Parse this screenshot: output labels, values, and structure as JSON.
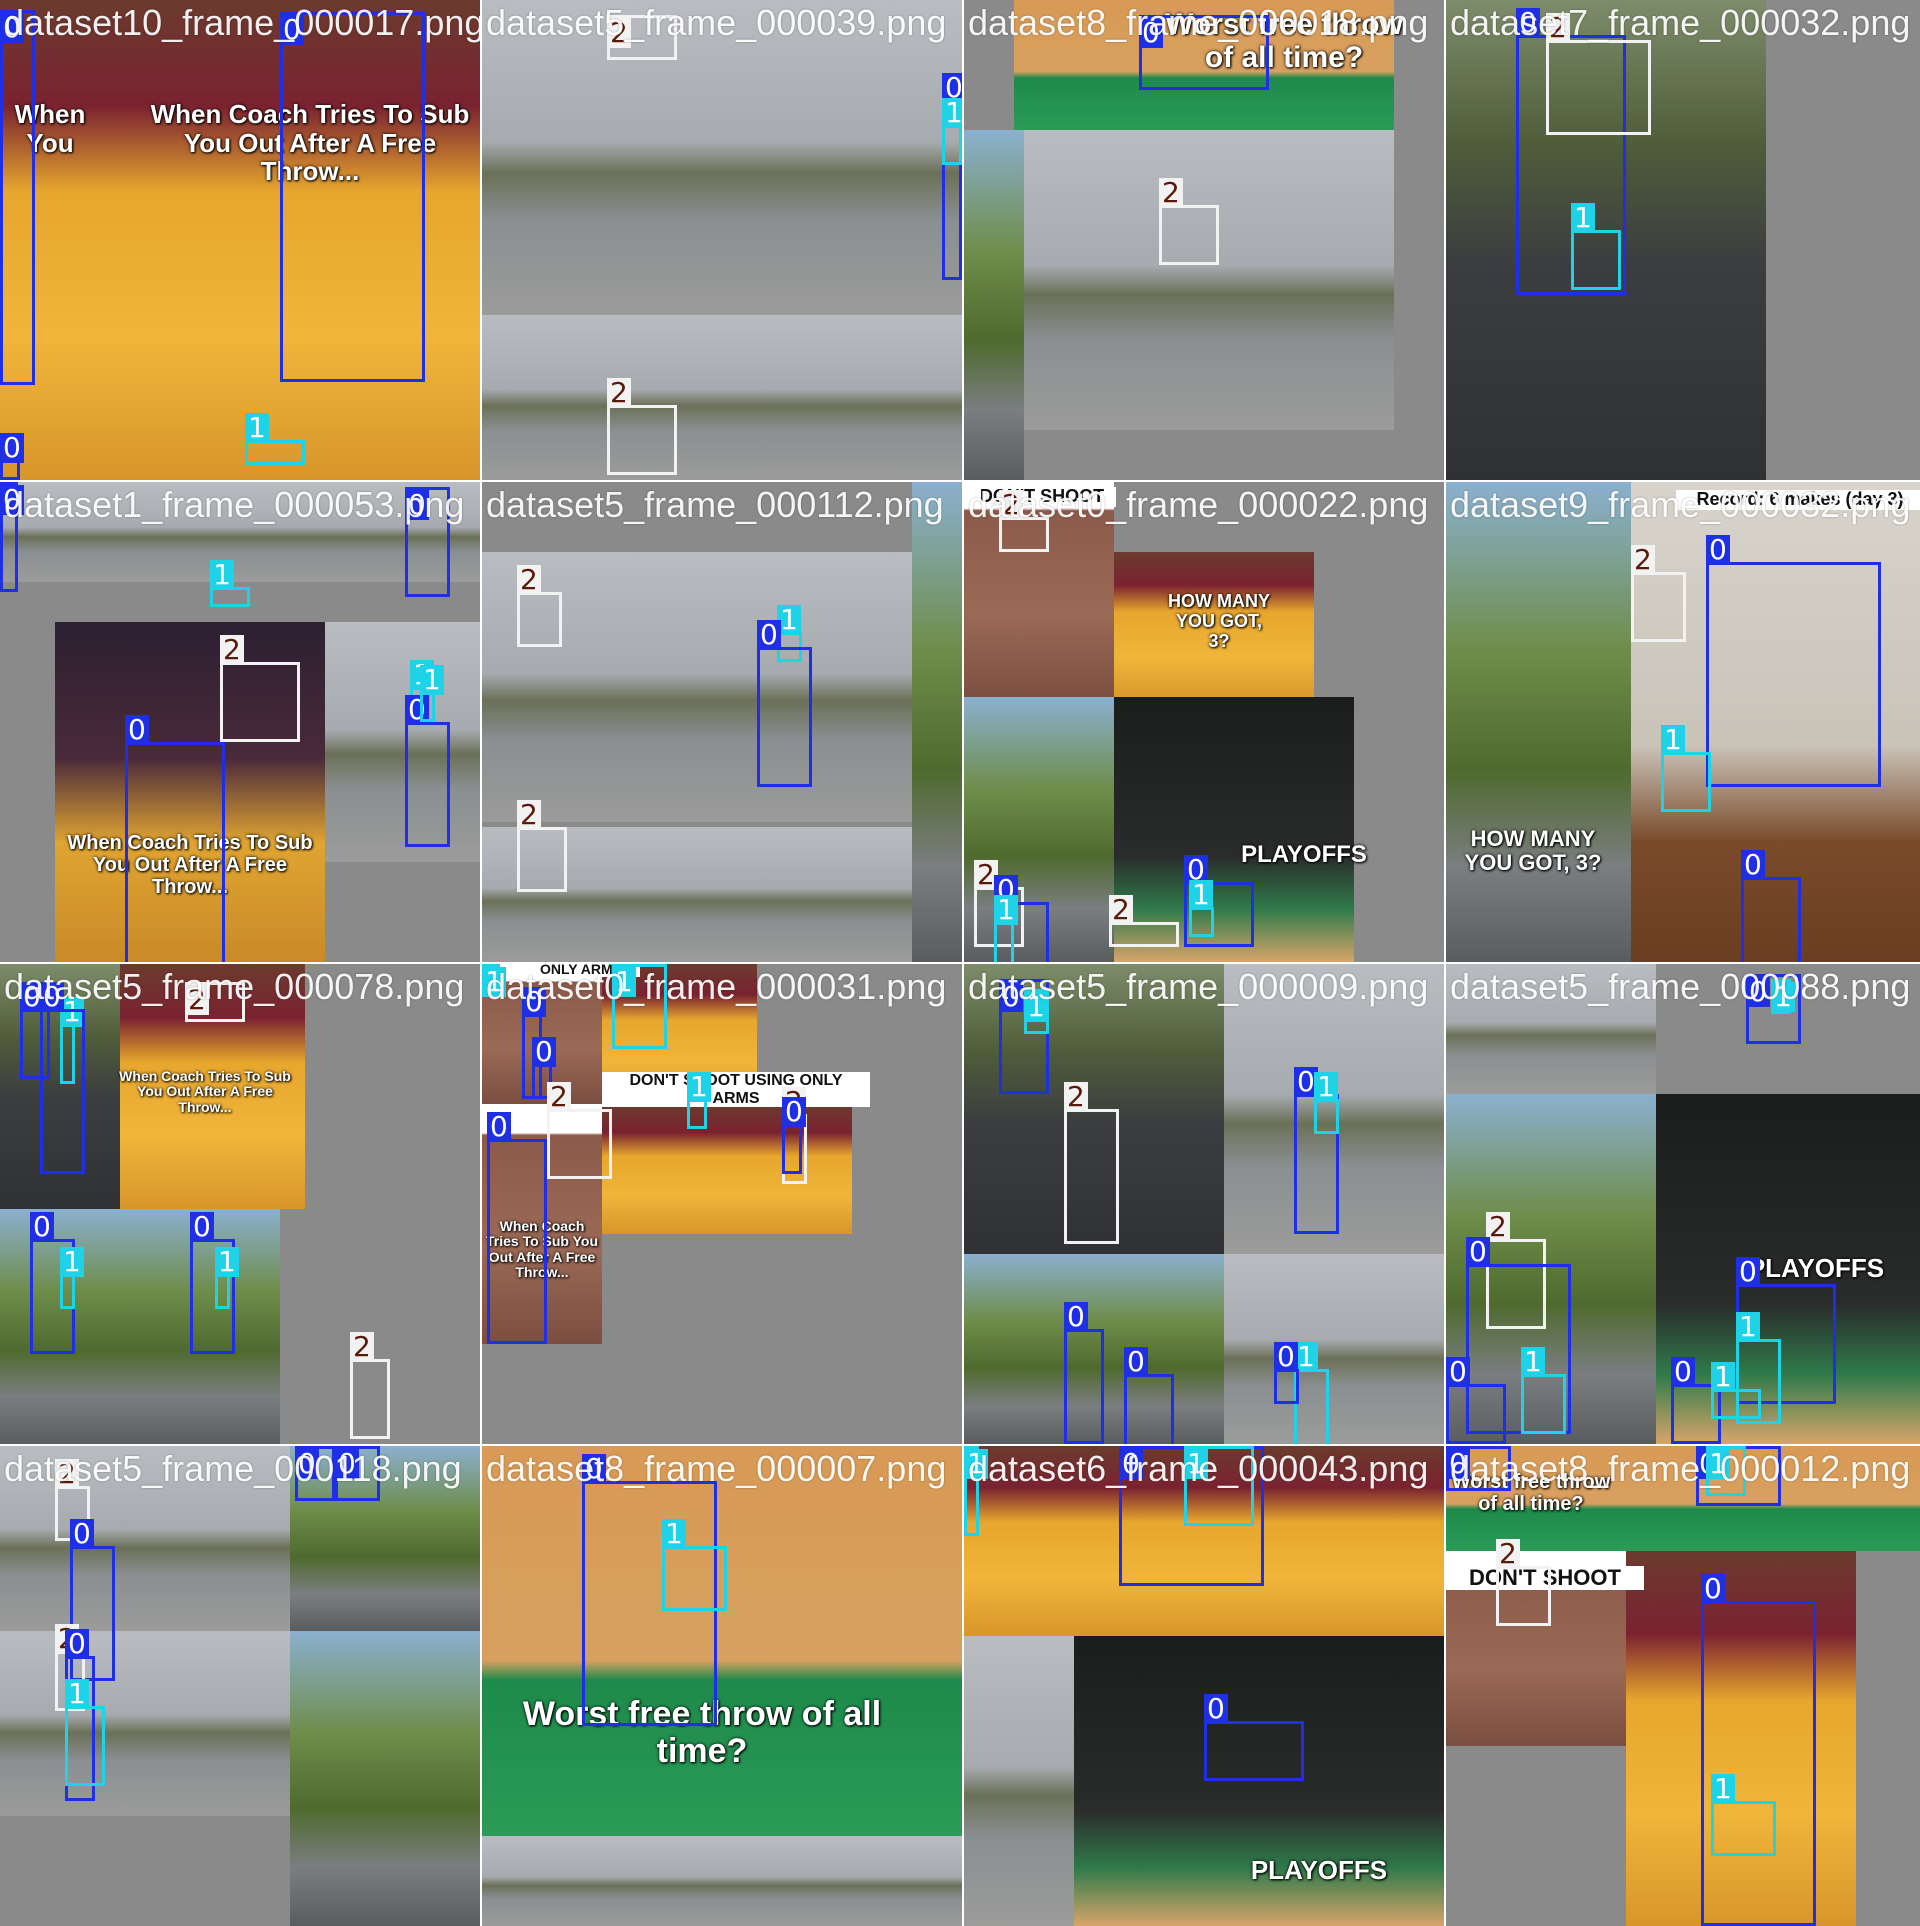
{
  "colors": {
    "background": "#ffffff",
    "fill_gray": "#8a8a8a",
    "class_0": "#1f2fe6",
    "class_1": "#1ed3e8",
    "class_2": "#f2f2f2"
  },
  "tiles": [
    {
      "name": "dataset10_frame_000017.png",
      "scenes": [
        {
          "kind": "court"
        },
        {
          "kind": "court"
        }
      ],
      "texts": [
        "When Coach Tries To Sub You Out After A Free Throw...",
        "When You"
      ],
      "boxes": [
        {
          "label": "0",
          "cls": 0
        },
        {
          "label": "2",
          "cls": 2
        },
        {
          "label": "0",
          "cls": 0
        },
        {
          "label": "1",
          "cls": 1
        },
        {
          "label": "0",
          "cls": 0
        }
      ]
    },
    {
      "name": "dataset5_frame_000039.png",
      "scenes": [
        {
          "kind": "building"
        },
        {
          "kind": "building"
        }
      ],
      "texts": [],
      "boxes": [
        {
          "label": "2",
          "cls": 2
        },
        {
          "label": "0",
          "cls": 0
        },
        {
          "label": "1",
          "cls": 1
        },
        {
          "label": "2",
          "cls": 2
        }
      ]
    },
    {
      "name": "dataset8_frame_000018.png",
      "scenes": [
        {
          "kind": "green"
        },
        {
          "kind": "building"
        },
        {
          "kind": "trees"
        }
      ],
      "texts": [
        "Worst free throw of all time?"
      ],
      "boxes": [
        {
          "label": "0",
          "cls": 0
        },
        {
          "label": "2",
          "cls": 2
        }
      ]
    },
    {
      "name": "dataset7_frame_000032.png",
      "scenes": [
        {
          "kind": "driveway"
        }
      ],
      "texts": [],
      "boxes": [
        {
          "label": "0",
          "cls": 0
        },
        {
          "label": "2",
          "cls": 2
        },
        {
          "label": "1",
          "cls": 1
        }
      ]
    },
    {
      "name": "dataset1_frame_000053.png",
      "scenes": [
        {
          "kind": "building"
        },
        {
          "kind": "arena"
        },
        {
          "kind": "building"
        }
      ],
      "texts": [
        "When Coach Tries To Sub You Out After A Free Throw..."
      ],
      "boxes": [
        {
          "label": "0",
          "cls": 0
        },
        {
          "label": "0",
          "cls": 0
        },
        {
          "label": "1",
          "cls": 1
        },
        {
          "label": "1",
          "cls": 1
        },
        {
          "label": "2",
          "cls": 2
        },
        {
          "label": "0",
          "cls": 0
        },
        {
          "label": "0",
          "cls": 0
        },
        {
          "label": "1",
          "cls": 1
        }
      ]
    },
    {
      "name": "dataset5_frame_000112.png",
      "scenes": [
        {
          "kind": "building"
        },
        {
          "kind": "building"
        },
        {
          "kind": "trees"
        }
      ],
      "texts": [],
      "boxes": [
        {
          "label": "2",
          "cls": 2
        },
        {
          "label": "1",
          "cls": 1
        },
        {
          "label": "0",
          "cls": 0
        },
        {
          "label": "2",
          "cls": 2
        }
      ]
    },
    {
      "name": "dataset0_frame_000022.png",
      "scenes": [
        {
          "kind": "brick"
        },
        {
          "kind": "court"
        },
        {
          "kind": "trees"
        },
        {
          "kind": "crowd"
        }
      ],
      "texts": [
        "DON'T SHOOT",
        "HOW MANY YOU GOT, 3?",
        "PLAYOFFS"
      ],
      "boxes": [
        {
          "label": "2",
          "cls": 2
        },
        {
          "label": "2",
          "cls": 2
        },
        {
          "label": "0",
          "cls": 0
        },
        {
          "label": "1",
          "cls": 1
        },
        {
          "label": "0",
          "cls": 0
        },
        {
          "label": "1",
          "cls": 1
        },
        {
          "label": "2",
          "cls": 2
        }
      ]
    },
    {
      "name": "dataset9_frame_000032.png",
      "scenes": [
        {
          "kind": "trees"
        },
        {
          "kind": "room"
        }
      ],
      "texts": [
        "Record: 6 makes (day 3)",
        "HOW MANY YOU GOT, 3?"
      ],
      "boxes": [
        {
          "label": "2",
          "cls": 2
        },
        {
          "label": "0",
          "cls": 0
        },
        {
          "label": "1",
          "cls": 1
        },
        {
          "label": "0",
          "cls": 0
        }
      ]
    },
    {
      "name": "dataset5_frame_000078.png",
      "scenes": [
        {
          "kind": "driveway"
        },
        {
          "kind": "court"
        },
        {
          "kind": "trees"
        },
        {
          "kind": "trees"
        }
      ],
      "texts": [
        "When Coach Tries To Sub You Out After A Free Throw..."
      ],
      "boxes": [
        {
          "label": "0",
          "cls": 0
        },
        {
          "label": "1",
          "cls": 1
        },
        {
          "label": "0",
          "cls": 0
        },
        {
          "label": "2",
          "cls": 2
        },
        {
          "label": "0",
          "cls": 0
        },
        {
          "label": "1",
          "cls": 1
        },
        {
          "label": "0",
          "cls": 0
        },
        {
          "label": "1",
          "cls": 1
        },
        {
          "label": "2",
          "cls": 2
        },
        {
          "label": "0",
          "cls": 0
        }
      ]
    },
    {
      "name": "dataset0_frame_000031.png",
      "scenes": [
        {
          "kind": "brick"
        },
        {
          "kind": "court"
        },
        {
          "kind": "court"
        },
        {
          "kind": "brick"
        }
      ],
      "texts": [
        "ONLY ARMS",
        "DON'T SHOOT USING ONLY ARMS",
        "When Coach Tries To Sub You Out After A Free Throw..."
      ],
      "boxes": [
        {
          "label": "1",
          "cls": 1
        },
        {
          "label": "0",
          "cls": 0
        },
        {
          "label": "0",
          "cls": 0
        },
        {
          "label": "1",
          "cls": 1
        },
        {
          "label": "2",
          "cls": 2
        },
        {
          "label": "1",
          "cls": 1
        },
        {
          "label": "0",
          "cls": 0
        },
        {
          "label": "2",
          "cls": 2
        },
        {
          "label": "0",
          "cls": 0
        }
      ]
    },
    {
      "name": "dataset5_frame_000009.png",
      "scenes": [
        {
          "kind": "driveway"
        },
        {
          "kind": "building"
        },
        {
          "kind": "trees"
        },
        {
          "kind": "building"
        }
      ],
      "texts": [],
      "boxes": [
        {
          "label": "0",
          "cls": 0
        },
        {
          "label": "1",
          "cls": 1
        },
        {
          "label": "0",
          "cls": 0
        },
        {
          "label": "1",
          "cls": 1
        },
        {
          "label": "2",
          "cls": 2
        },
        {
          "label": "0",
          "cls": 0
        },
        {
          "label": "0",
          "cls": 0
        },
        {
          "label": "1",
          "cls": 1
        },
        {
          "label": "0",
          "cls": 0
        },
        {
          "label": "1",
          "cls": 1
        }
      ]
    },
    {
      "name": "dataset5_frame_000088.png",
      "scenes": [
        {
          "kind": "building"
        },
        {
          "kind": "trees"
        },
        {
          "kind": "crowd"
        }
      ],
      "texts": [
        "PLAYOFFS"
      ],
      "boxes": [
        {
          "label": "0",
          "cls": 0
        },
        {
          "label": "1",
          "cls": 1
        },
        {
          "label": "2",
          "cls": 2
        },
        {
          "label": "0",
          "cls": 0
        },
        {
          "label": "1",
          "cls": 1
        },
        {
          "label": "0",
          "cls": 0
        },
        {
          "label": "1",
          "cls": 1
        },
        {
          "label": "0",
          "cls": 0
        },
        {
          "label": "0",
          "cls": 0
        },
        {
          "label": "1",
          "cls": 1
        }
      ]
    },
    {
      "name": "dataset5_frame_000118.png",
      "scenes": [
        {
          "kind": "building"
        },
        {
          "kind": "trees"
        },
        {
          "kind": "building"
        },
        {
          "kind": "trees"
        }
      ],
      "texts": [],
      "boxes": [
        {
          "label": "2",
          "cls": 2
        },
        {
          "label": "0",
          "cls": 0
        },
        {
          "label": "2",
          "cls": 2
        },
        {
          "label": "0",
          "cls": 0
        },
        {
          "label": "1",
          "cls": 1
        },
        {
          "label": "2",
          "cls": 2
        },
        {
          "label": "0",
          "cls": 0
        },
        {
          "label": "0",
          "cls": 0
        },
        {
          "label": "1",
          "cls": 1
        }
      ]
    },
    {
      "name": "dataset8_frame_000007.png",
      "scenes": [
        {
          "kind": "green"
        },
        {
          "kind": "building"
        }
      ],
      "texts": [
        "Worst free throw of all time?"
      ],
      "boxes": [
        {
          "label": "0",
          "cls": 0
        },
        {
          "label": "1",
          "cls": 1
        }
      ]
    },
    {
      "name": "dataset6_frame_000043.png",
      "scenes": [
        {
          "kind": "court"
        },
        {
          "kind": "building"
        },
        {
          "kind": "crowd"
        }
      ],
      "texts": [
        "PLAYOFFS"
      ],
      "boxes": [
        {
          "label": "1",
          "cls": 1
        },
        {
          "label": "0",
          "cls": 0
        },
        {
          "label": "1",
          "cls": 1
        },
        {
          "label": "0",
          "cls": 0
        }
      ]
    },
    {
      "name": "dataset8_frame_000012.png",
      "scenes": [
        {
          "kind": "green"
        },
        {
          "kind": "green"
        },
        {
          "kind": "brick"
        },
        {
          "kind": "court"
        }
      ],
      "texts": [
        "Worst free throw of all time?",
        "DON'T SHOOT"
      ],
      "boxes": [
        {
          "label": "0",
          "cls": 0
        },
        {
          "label": "0",
          "cls": 0
        },
        {
          "label": "1",
          "cls": 1
        },
        {
          "label": "2",
          "cls": 2
        },
        {
          "label": "0",
          "cls": 0
        },
        {
          "label": "1",
          "cls": 1
        }
      ]
    }
  ]
}
